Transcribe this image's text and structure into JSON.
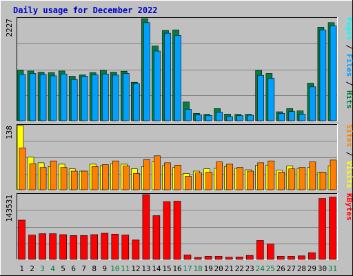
{
  "chart_data": {
    "type": "bar",
    "title": "Daily usage for December 2022",
    "categories": [
      "1",
      "2",
      "3",
      "4",
      "5",
      "6",
      "7",
      "8",
      "9",
      "10",
      "11",
      "12",
      "13",
      "14",
      "15",
      "16",
      "17",
      "18",
      "19",
      "20",
      "21",
      "22",
      "23",
      "24",
      "25",
      "26",
      "27",
      "28",
      "29",
      "30",
      "31"
    ],
    "weekend_days": [
      "3",
      "4",
      "10",
      "11",
      "17",
      "18",
      "24",
      "25",
      "31"
    ],
    "panels": [
      {
        "name": "pages-files-hits",
        "ymax_label": "2227",
        "ymax": 2227,
        "legend": [
          "Pages",
          "/",
          "Files",
          "/",
          "Hits"
        ],
        "series": [
          {
            "name": "Hits",
            "color": "#008040",
            "values": [
              1105,
              1085,
              1060,
              1050,
              1085,
              970,
              1000,
              1050,
              1100,
              1060,
              1080,
              840,
              2227,
              1630,
              1970,
              1980,
              410,
              160,
              140,
              265,
              145,
              140,
              140,
              1100,
              1030,
              195,
              265,
              215,
              820,
              2040,
              2140
            ]
          },
          {
            "name": "Files",
            "color": "#00a0ff",
            "values": [
              1010,
              1030,
              1010,
              980,
              1020,
              900,
              970,
              1000,
              1020,
              995,
              1030,
              810,
              2140,
              1520,
              1910,
              1860,
              250,
              130,
              115,
              185,
              90,
              110,
              120,
              990,
              925,
              160,
              200,
              145,
              740,
              1980,
              2070
            ]
          },
          {
            "name": "Pages",
            "color": "#00ffff",
            "values": [
              0,
              0,
              0,
              0,
              0,
              0,
              0,
              0,
              0,
              0,
              0,
              0,
              0,
              0,
              0,
              0,
              0,
              0,
              0,
              0,
              0,
              0,
              0,
              0,
              0,
              0,
              0,
              0,
              0,
              0,
              0
            ]
          }
        ]
      },
      {
        "name": "visits-sites",
        "ymax_label": "138",
        "ymax": 138,
        "legend": [
          "Sites",
          "/",
          "Visits"
        ],
        "series": [
          {
            "name": "Visits",
            "color": "#ffff00",
            "values": [
              138,
              70,
              58,
              50,
              55,
              45,
              40,
              55,
              52,
              56,
              55,
              45,
              50,
              60,
              52,
              48,
              35,
              40,
              45,
              46,
              50,
              46,
              43,
              53,
              53,
              42,
              51,
              46,
              48,
              38,
              51
            ]
          },
          {
            "name": "Sites",
            "color": "#ff8000",
            "values": [
              90,
              56,
              48,
              62,
              48,
              40,
              40,
              50,
              54,
              62,
              51,
              35,
              65,
              73,
              58,
              53,
              29,
              36,
              38,
              60,
              55,
              48,
              40,
              58,
              62,
              38,
              45,
              48,
              60,
              38,
              64
            ]
          }
        ]
      },
      {
        "name": "kbytes",
        "ymax_label": "143531",
        "ymax": 143531,
        "legend": [
          "KBytes"
        ],
        "series": [
          {
            "name": "KBytes",
            "color": "#ff0000",
            "values": [
              87000,
              54000,
              57000,
              57000,
              55000,
              53000,
              53000,
              55000,
              58000,
              56000,
              54000,
              43000,
              143531,
              97000,
              128000,
              129000,
              10000,
              4500,
              7000,
              7000,
              5000,
              5500,
              9000,
              42000,
              34000,
              7000,
              7000,
              8000,
              15000,
              135000,
              138000
            ]
          }
        ]
      }
    ],
    "grid": true
  }
}
